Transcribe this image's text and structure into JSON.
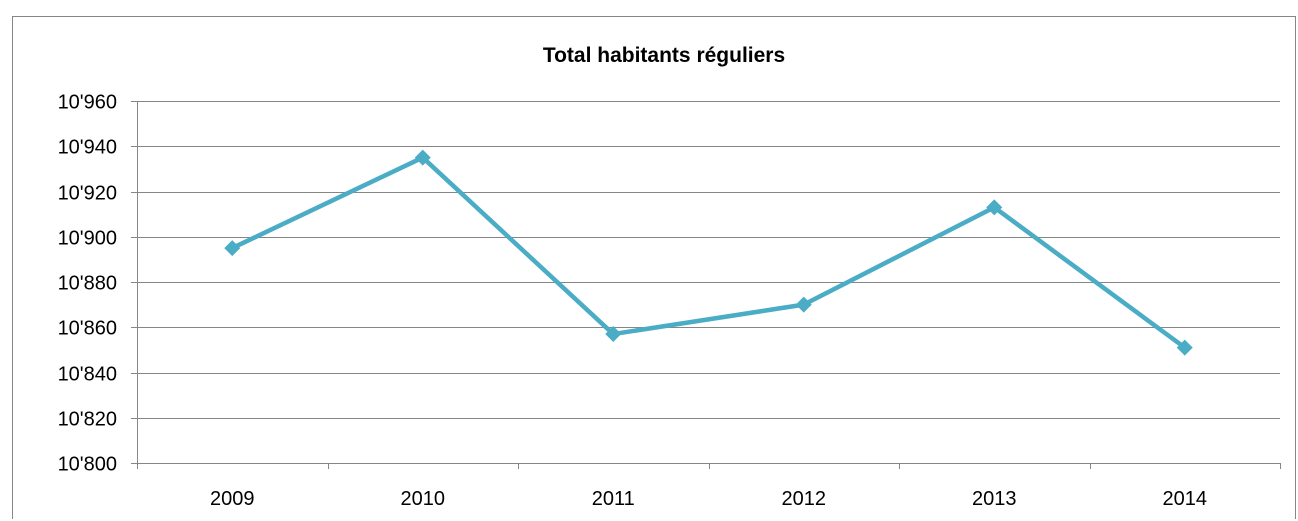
{
  "chart_data": {
    "type": "line",
    "title": "Total habitants réguliers",
    "xlabel": "",
    "ylabel": "",
    "categories": [
      "2009",
      "2010",
      "2011",
      "2012",
      "2013",
      "2014"
    ],
    "series": [
      {
        "values": [
          10895,
          10935,
          10857,
          10870,
          10913,
          10851
        ],
        "color": "#4bacc6",
        "marker": "diamond"
      }
    ],
    "ylim": [
      10800,
      10960
    ],
    "yticks": [
      10800,
      10820,
      10840,
      10860,
      10880,
      10900,
      10920,
      10940,
      10960
    ],
    "ytick_labels": [
      "10'800",
      "10'820",
      "10'840",
      "10'860",
      "10'880",
      "10'900",
      "10'920",
      "10'940",
      "10'960"
    ],
    "grid": true,
    "legend": "none"
  },
  "colors": {
    "gridline": "#868686",
    "axis": "#868686",
    "text": "#000000"
  }
}
